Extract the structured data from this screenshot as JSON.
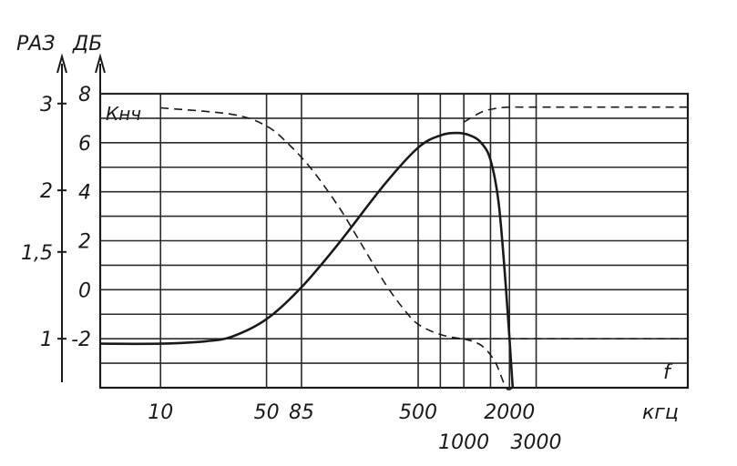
{
  "chart_data": {
    "type": "line",
    "x_scale": "log",
    "x_unit_label": "кгц",
    "x_tick_labels": [
      "10",
      "50",
      "85",
      "500",
      "1000",
      "2000",
      "3000"
    ],
    "x_tick_values": [
      10,
      50,
      85,
      500,
      1000,
      2000,
      3000
    ],
    "xlim": [
      4,
      30000
    ],
    "left_axis": {
      "label": "РАЗ",
      "tick_labels": [
        "1",
        "1,5",
        "2",
        "3"
      ],
      "tick_values": [
        1,
        1.5,
        2,
        3
      ]
    },
    "right_axis": {
      "label": "ДБ",
      "tick_labels": [
        "-2",
        "0",
        "2",
        "4",
        "6",
        "8"
      ],
      "tick_values": [
        -2,
        0,
        2,
        4,
        6,
        8
      ],
      "ylim": [
        -4,
        8
      ]
    },
    "annotations": [
      "Кнч",
      "f"
    ],
    "series": [
      {
        "style": "solid",
        "axis": "ДБ",
        "x": [
          4,
          10,
          20,
          30,
          50,
          85,
          150,
          300,
          500,
          700,
          900,
          1100,
          1300,
          1500,
          1700,
          1900,
          2100
        ],
        "y": [
          -2.2,
          -2.2,
          -2.1,
          -1.9,
          -1.2,
          0.1,
          1.9,
          4.3,
          5.8,
          6.3,
          6.4,
          6.3,
          6.0,
          5.3,
          3.5,
          0.0,
          -4.0
        ]
      },
      {
        "style": "dashed",
        "axis": "РАЗ",
        "x": [
          10,
          30,
          50,
          70,
          100,
          150,
          200,
          300,
          400,
          500,
          700,
          1000,
          1500,
          2000,
          3000,
          30000
        ],
        "y": [
          2.94,
          2.85,
          2.7,
          2.48,
          2.2,
          1.85,
          1.6,
          1.3,
          1.15,
          1.07,
          1.02,
          1.0,
          1.0,
          1.0,
          1.0,
          1.0
        ]
      },
      {
        "style": "dashed",
        "axis": "РАЗ",
        "x": [
          1000,
          1300,
          1600,
          2000,
          3000,
          30000
        ],
        "y": [
          2.75,
          2.88,
          2.93,
          2.95,
          2.95,
          2.95
        ]
      },
      {
        "style": "dashed",
        "axis": "РАЗ",
        "x": [
          1000,
          1300,
          1600,
          1900,
          2100
        ],
        "y": [
          1.0,
          0.97,
          0.9,
          0.78,
          0.6
        ]
      }
    ],
    "grid": true
  }
}
